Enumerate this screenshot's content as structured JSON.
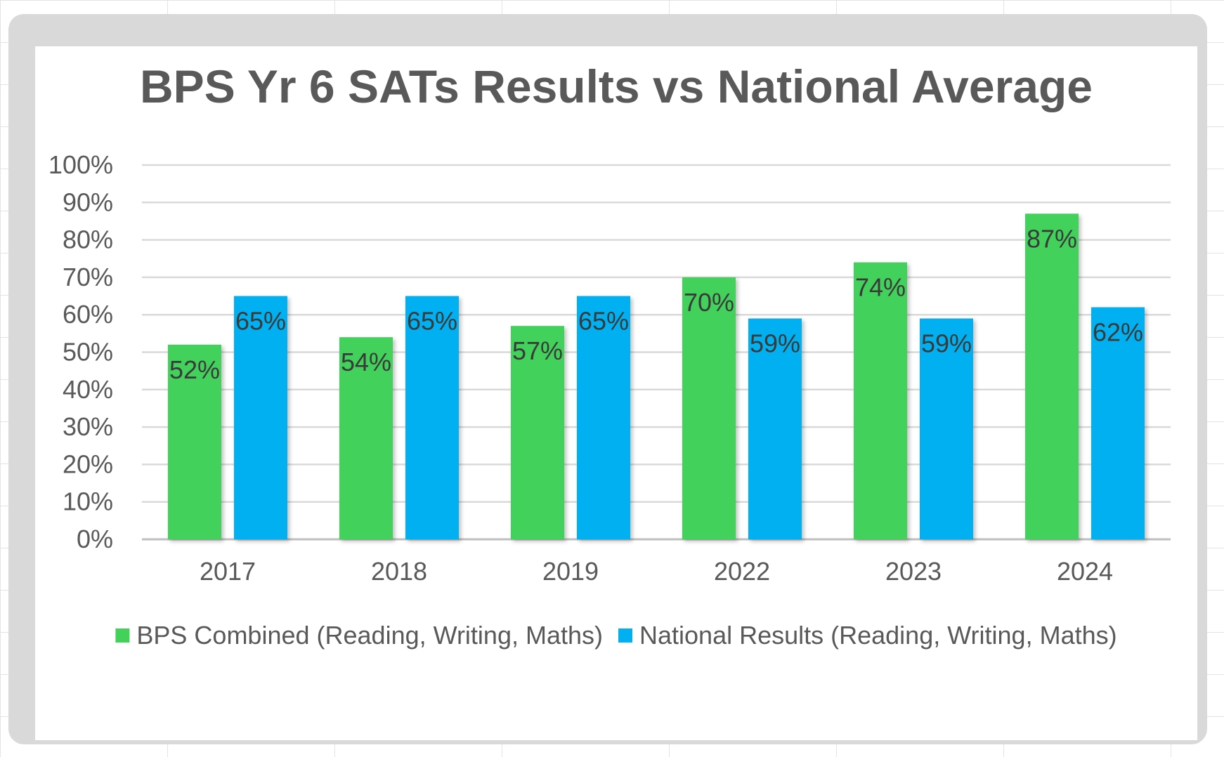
{
  "chart_data": {
    "type": "bar",
    "title": "BPS Yr 6 SATs Results  vs National Average",
    "xlabel": "",
    "ylabel": "",
    "ylim": [
      0,
      100
    ],
    "yticks": [
      "0%",
      "10%",
      "20%",
      "30%",
      "40%",
      "50%",
      "60%",
      "70%",
      "80%",
      "90%",
      "100%"
    ],
    "grid": true,
    "legend_position": "bottom",
    "categories": [
      "2017",
      "2018",
      "2019",
      "2022",
      "2023",
      "2024"
    ],
    "series": [
      {
        "name": "BPS Combined (Reading, Writing, Maths)",
        "color": "#43d15a",
        "values": [
          52,
          54,
          57,
          70,
          74,
          87
        ],
        "labels": [
          "52%",
          "54%",
          "57%",
          "70%",
          "74%",
          "87%"
        ]
      },
      {
        "name": "National Results (Reading, Writing,  Maths)",
        "color": "#00b0f0",
        "values": [
          65,
          65,
          65,
          59,
          59,
          62
        ],
        "labels": [
          "65%",
          "65%",
          "65%",
          "59%",
          "59%",
          "62%"
        ]
      }
    ]
  }
}
